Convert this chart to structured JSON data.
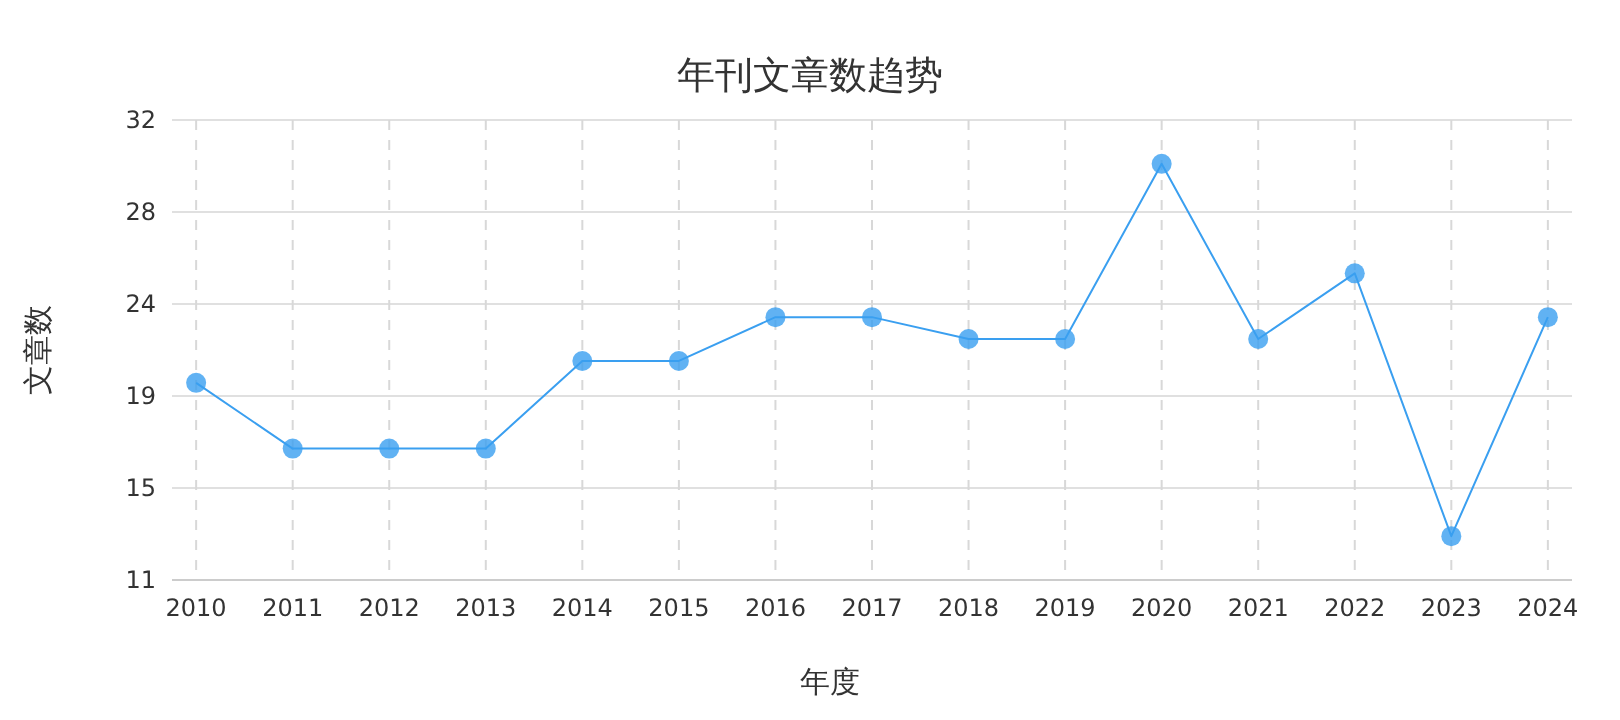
{
  "chart_data": {
    "type": "line",
    "title": "年刊文章数趋势",
    "xlabel": "年度",
    "ylabel": "文章数",
    "categories": [
      "2010",
      "2011",
      "2012",
      "2013",
      "2014",
      "2015",
      "2016",
      "2017",
      "2018",
      "2019",
      "2020",
      "2021",
      "2022",
      "2023",
      "2024"
    ],
    "series": [
      {
        "color": "#3a9ff0",
        "values": [
          20,
          17,
          17,
          17,
          21,
          21,
          23,
          23,
          22,
          22,
          30,
          22,
          25,
          13,
          23
        ]
      }
    ],
    "ylim": [
      11,
      32
    ],
    "yticks": [
      11,
      {
        "value": 15.2,
        "label": "15"
      },
      {
        "value": 19.4,
        "label": "19"
      },
      {
        "value": 23.6,
        "label": "24"
      },
      {
        "value": 27.8,
        "label": "28"
      },
      32
    ],
    "grid": true,
    "marker": "circle",
    "line_style": "solid"
  }
}
